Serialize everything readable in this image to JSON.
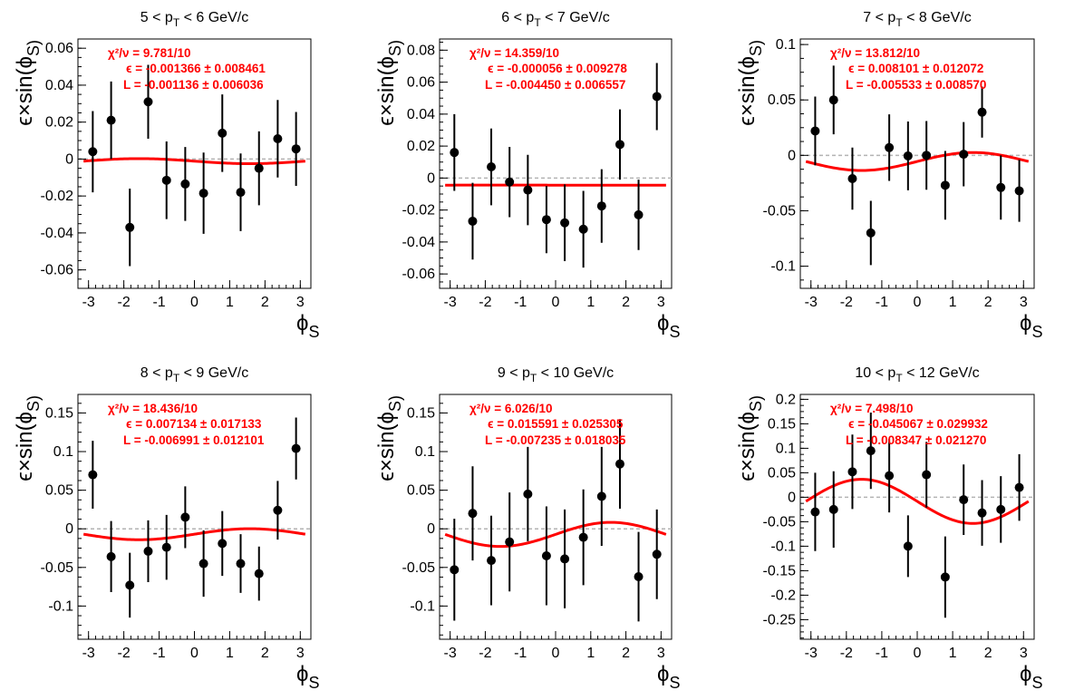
{
  "colors": {
    "fit": "#ff0000",
    "zero_line": "#b3b3b3",
    "points": "#000000",
    "stat_text": "#ff0000"
  },
  "chart_data": [
    {
      "type": "scatter",
      "title": "5 < p_T < 6 GeV/c",
      "xlabel": "ϕ_S",
      "ylabel": "ϵ×sin(ϕ_S)",
      "xlim": [
        -3.3,
        3.3
      ],
      "ylim": [
        -0.07,
        0.065
      ],
      "xticks": [
        -3,
        -2,
        -1,
        0,
        1,
        2,
        3
      ],
      "yticks": [
        -0.06,
        -0.04,
        -0.02,
        0,
        0.02,
        0.04,
        0.06
      ],
      "ytick_labels": [
        "-0.06",
        "-0.04",
        "-0.02",
        "0",
        "0.02",
        "0.04",
        "0.06"
      ],
      "x": [
        -2.88,
        -2.36,
        -1.83,
        -1.31,
        -0.79,
        -0.26,
        0.26,
        0.79,
        1.31,
        1.83,
        2.36,
        2.88
      ],
      "y": [
        0.004,
        0.021,
        -0.037,
        0.031,
        -0.0115,
        -0.0135,
        -0.0185,
        0.014,
        -0.018,
        -0.005,
        0.011,
        0.0055
      ],
      "yerr": [
        0.022,
        0.021,
        0.021,
        0.02,
        0.021,
        0.02,
        0.022,
        0.021,
        0.021,
        0.02,
        0.021,
        0.02
      ],
      "fit": {
        "eps": -0.001366,
        "L": -0.001136
      },
      "stats": {
        "chi2": "χ²/ν = 9.781/10",
        "eps": "ϵ = -0.001366  ± 0.008461",
        "L": "L = -0.001136  ± 0.006036"
      }
    },
    {
      "type": "scatter",
      "title": "6 < p_T < 7 GeV/c",
      "xlabel": "ϕ_S",
      "ylabel": "ϵ×sin(ϕ_S)",
      "xlim": [
        -3.3,
        3.3
      ],
      "ylim": [
        -0.069,
        0.087
      ],
      "xticks": [
        -3,
        -2,
        -1,
        0,
        1,
        2,
        3
      ],
      "yticks": [
        -0.06,
        -0.04,
        -0.02,
        0,
        0.02,
        0.04,
        0.06,
        0.08
      ],
      "ytick_labels": [
        "-0.06",
        "-0.04",
        "-0.02",
        "0",
        "0.02",
        "0.04",
        "0.06",
        "0.08"
      ],
      "x": [
        -2.88,
        -2.36,
        -1.83,
        -1.31,
        -0.79,
        -0.26,
        0.26,
        0.79,
        1.31,
        1.83,
        2.36,
        2.88
      ],
      "y": [
        0.016,
        -0.027,
        0.007,
        -0.0025,
        -0.0075,
        -0.026,
        -0.028,
        -0.032,
        -0.0175,
        0.021,
        -0.023,
        0.051
      ],
      "yerr": [
        0.024,
        0.024,
        0.024,
        0.022,
        0.022,
        0.021,
        0.024,
        0.024,
        0.023,
        0.022,
        0.022,
        0.021
      ],
      "fit": {
        "eps": -5.6e-05,
        "L": -0.00445
      },
      "stats": {
        "chi2": "χ²/ν = 14.359/10",
        "eps": "ϵ = -0.000056  ± 0.009278",
        "L": "L = -0.004450  ± 0.006557"
      }
    },
    {
      "type": "scatter",
      "title": "7 < p_T < 8 GeV/c",
      "xlabel": "ϕ_S",
      "ylabel": "ϵ×sin(ϕ_S)",
      "xlim": [
        -3.3,
        3.3
      ],
      "ylim": [
        -0.12,
        0.105
      ],
      "xticks": [
        -3,
        -2,
        -1,
        0,
        1,
        2,
        3
      ],
      "yticks": [
        -0.1,
        -0.05,
        0,
        0.05,
        0.1
      ],
      "ytick_labels": [
        "-0.1",
        "-0.05",
        "0",
        "0.05",
        "0.1"
      ],
      "x": [
        -2.88,
        -2.36,
        -1.83,
        -1.31,
        -0.79,
        -0.26,
        0.26,
        0.79,
        1.31,
        1.83,
        2.36,
        2.88
      ],
      "y": [
        0.022,
        0.05,
        -0.021,
        -0.07,
        0.007,
        -0.0005,
        0.0,
        -0.027,
        0.001,
        0.039,
        -0.029,
        -0.032
      ],
      "yerr": [
        0.031,
        0.031,
        0.028,
        0.029,
        0.03,
        0.031,
        0.031,
        0.031,
        0.029,
        0.023,
        0.029,
        0.028
      ],
      "fit": {
        "eps": 0.008101,
        "L": -0.005533
      },
      "stats": {
        "chi2": "χ²/ν = 13.812/10",
        "eps": "ϵ = 0.008101  ± 0.012072",
        "L": "L = -0.005533  ± 0.008570"
      }
    },
    {
      "type": "scatter",
      "title": "8 < p_T < 9 GeV/c",
      "xlabel": "ϕ_S",
      "ylabel": "ϵ×sin(ϕ_S)",
      "xlim": [
        -3.3,
        3.3
      ],
      "ylim": [
        -0.143,
        0.174
      ],
      "xticks": [
        -3,
        -2,
        -1,
        0,
        1,
        2,
        3
      ],
      "yticks": [
        -0.1,
        -0.05,
        0,
        0.05,
        0.1,
        0.15
      ],
      "ytick_labels": [
        "-0.1",
        "-0.05",
        "0",
        "0.05",
        "0.1",
        "0.15"
      ],
      "x": [
        -2.88,
        -2.36,
        -1.83,
        -1.31,
        -0.79,
        -0.26,
        0.26,
        0.79,
        1.31,
        1.83,
        2.36,
        2.88
      ],
      "y": [
        0.07,
        -0.036,
        -0.073,
        -0.029,
        -0.024,
        0.015,
        -0.045,
        -0.019,
        -0.045,
        -0.058,
        0.024,
        0.104
      ],
      "yerr": [
        0.044,
        0.046,
        0.042,
        0.04,
        0.042,
        0.04,
        0.043,
        0.042,
        0.038,
        0.035,
        0.038,
        0.04
      ],
      "fit": {
        "eps": 0.007134,
        "L": -0.006991
      },
      "stats": {
        "chi2": "χ²/ν = 18.436/10",
        "eps": "ϵ = 0.007134  ± 0.017133",
        "L": "L = -0.006991  ± 0.012101"
      }
    },
    {
      "type": "scatter",
      "title": "9 < p_T < 10 GeV/c",
      "xlabel": "ϕ_S",
      "ylabel": "ϵ×sin(ϕ_S)",
      "xlim": [
        -3.3,
        3.3
      ],
      "ylim": [
        -0.143,
        0.174
      ],
      "xticks": [
        -3,
        -2,
        -1,
        0,
        1,
        2,
        3
      ],
      "yticks": [
        -0.1,
        -0.05,
        0,
        0.05,
        0.1,
        0.15
      ],
      "ytick_labels": [
        "-0.1",
        "-0.05",
        "0",
        "0.05",
        "0.1",
        "0.15"
      ],
      "x": [
        -2.88,
        -2.36,
        -1.83,
        -1.31,
        -0.79,
        -0.26,
        0.26,
        0.79,
        1.31,
        1.83,
        2.36,
        2.88
      ],
      "y": [
        -0.053,
        0.02,
        -0.041,
        -0.017,
        0.045,
        -0.035,
        -0.039,
        -0.011,
        0.042,
        0.084,
        -0.062,
        -0.033
      ],
      "yerr": [
        0.066,
        0.061,
        0.058,
        0.064,
        0.061,
        0.064,
        0.064,
        0.062,
        0.064,
        0.058,
        0.058,
        0.058
      ],
      "fit": {
        "eps": 0.015591,
        "L": -0.007235
      },
      "stats": {
        "chi2": "χ²/ν = 6.026/10",
        "eps": "ϵ = 0.015591  ± 0.025305",
        "L": "L = -0.007235  ± 0.018035"
      }
    },
    {
      "type": "scatter",
      "title": "10 < p_T < 12 GeV/c",
      "xlabel": "ϕ_S",
      "ylabel": "ϵ×sin(ϕ_S)",
      "xlim": [
        -3.3,
        3.3
      ],
      "ylim": [
        -0.29,
        0.21
      ],
      "xticks": [
        -3,
        -2,
        -1,
        0,
        1,
        2,
        3
      ],
      "yticks": [
        -0.25,
        -0.2,
        -0.15,
        -0.1,
        -0.05,
        0,
        0.05,
        0.1,
        0.15,
        0.2
      ],
      "ytick_labels": [
        "-0.25",
        "-0.2",
        "-0.15",
        "-0.1",
        "-0.05",
        "0",
        "0.05",
        "0.1",
        "0.15",
        "0.2"
      ],
      "x": [
        -2.88,
        -2.36,
        -1.83,
        -1.31,
        -0.79,
        -0.26,
        0.26,
        0.79,
        1.31,
        1.83,
        2.36,
        2.88
      ],
      "y": [
        -0.03,
        -0.025,
        0.052,
        0.095,
        0.044,
        -0.1,
        0.046,
        -0.163,
        -0.005,
        -0.032,
        -0.025,
        0.02
      ],
      "yerr": [
        0.08,
        0.078,
        0.076,
        0.078,
        0.075,
        0.063,
        0.067,
        0.083,
        0.072,
        0.067,
        0.068,
        0.068
      ],
      "fit": {
        "eps": -0.045067,
        "L": -0.008347
      },
      "stats": {
        "chi2": "χ²/ν = 7.498/10",
        "eps": "ϵ = -0.045067  ± 0.029932",
        "L": "L = -0.008347  ± 0.021270"
      }
    }
  ]
}
